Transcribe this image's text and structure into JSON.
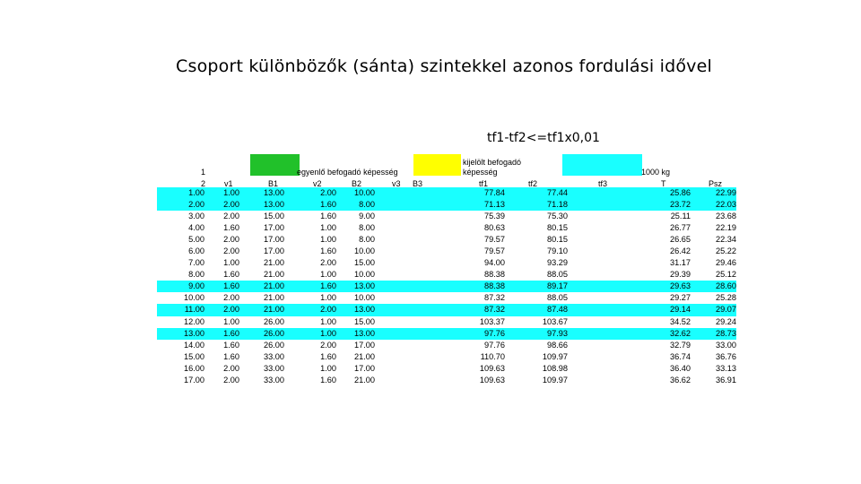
{
  "title": "Csoport különbözők (sánta) szintekkel  azonos fordulási  idővel",
  "subtitle": "tf1-tf2<=tf1x0,01",
  "colors": {
    "green": "#21c12a",
    "yellow": "#ffff00",
    "cyan": "#19ffff"
  },
  "header": {
    "row1_num": "1",
    "row2_num": "2",
    "egyenlo": "egyenlő befogadó képesség",
    "kijelolt_1": "kijelölt befogadó",
    "kijelolt_2": "képesség",
    "kg": "1000 kg",
    "columns": [
      "v1",
      "B1",
      "v2",
      "B2",
      "v3",
      "B3",
      "tf1",
      "tf2",
      "tf3",
      "T",
      "Psz"
    ]
  },
  "rows": [
    {
      "n": "1.00",
      "v1": "1.00",
      "b1": "13.00",
      "v2": "2.00",
      "b2": "10.00",
      "tf1": "77.84",
      "tf2": "77.44",
      "t": "25.86",
      "psz": "22.99",
      "hl": true
    },
    {
      "n": "2.00",
      "v1": "2.00",
      "b1": "13.00",
      "v2": "1.60",
      "b2": "8.00",
      "tf1": "71.13",
      "tf2": "71.18",
      "t": "23.72",
      "psz": "22.03",
      "hl": true
    },
    {
      "n": "3.00",
      "v1": "2.00",
      "b1": "15.00",
      "v2": "1.60",
      "b2": "9.00",
      "tf1": "75.39",
      "tf2": "75.30",
      "t": "25.11",
      "psz": "23.68",
      "hl": false
    },
    {
      "n": "4.00",
      "v1": "1.60",
      "b1": "17.00",
      "v2": "1.00",
      "b2": "8.00",
      "tf1": "80.63",
      "tf2": "80.15",
      "t": "26.77",
      "psz": "22.19",
      "hl": false
    },
    {
      "n": "5.00",
      "v1": "2.00",
      "b1": "17.00",
      "v2": "1.00",
      "b2": "8.00",
      "tf1": "79.57",
      "tf2": "80.15",
      "t": "26.65",
      "psz": "22.34",
      "hl": false
    },
    {
      "n": "6.00",
      "v1": "2.00",
      "b1": "17.00",
      "v2": "1.60",
      "b2": "10.00",
      "tf1": "79.57",
      "tf2": "79.10",
      "t": "26.42",
      "psz": "25.22",
      "hl": false
    },
    {
      "n": "7.00",
      "v1": "1.00",
      "b1": "21.00",
      "v2": "2.00",
      "b2": "15.00",
      "tf1": "94.00",
      "tf2": "93.29",
      "t": "31.17",
      "psz": "29.46",
      "hl": false
    },
    {
      "n": "8.00",
      "v1": "1.60",
      "b1": "21.00",
      "v2": "1.00",
      "b2": "10.00",
      "tf1": "88.38",
      "tf2": "88.05",
      "t": "29.39",
      "psz": "25.12",
      "hl": false
    },
    {
      "n": "9.00",
      "v1": "1.60",
      "b1": "21.00",
      "v2": "1.60",
      "b2": "13.00",
      "tf1": "88.38",
      "tf2": "89.17",
      "t": "29.63",
      "psz": "28.60",
      "hl": true
    },
    {
      "n": "10.00",
      "v1": "2.00",
      "b1": "21.00",
      "v2": "1.00",
      "b2": "10.00",
      "tf1": "87.32",
      "tf2": "88.05",
      "t": "29.27",
      "psz": "25.28",
      "hl": false
    },
    {
      "n": "11.00",
      "v1": "2.00",
      "b1": "21.00",
      "v2": "2.00",
      "b2": "13.00",
      "tf1": "87.32",
      "tf2": "87.48",
      "t": "29.14",
      "psz": "29.07",
      "hl": true
    },
    {
      "n": "12.00",
      "v1": "1.00",
      "b1": "26.00",
      "v2": "1.00",
      "b2": "15.00",
      "tf1": "103.37",
      "tf2": "103.67",
      "t": "34.52",
      "psz": "29.24",
      "hl": false
    },
    {
      "n": "13.00",
      "v1": "1.60",
      "b1": "26.00",
      "v2": "1.00",
      "b2": "13.00",
      "tf1": "97.76",
      "tf2": "97.93",
      "t": "32.62",
      "psz": "28.73",
      "hl": true
    },
    {
      "n": "14.00",
      "v1": "1.60",
      "b1": "26.00",
      "v2": "2.00",
      "b2": "17.00",
      "tf1": "97.76",
      "tf2": "98.66",
      "t": "32.79",
      "psz": "33.00",
      "hl": false
    },
    {
      "n": "15.00",
      "v1": "1.60",
      "b1": "33.00",
      "v2": "1.60",
      "b2": "21.00",
      "tf1": "110.70",
      "tf2": "109.97",
      "t": "36.74",
      "psz": "36.76",
      "hl": false
    },
    {
      "n": "16.00",
      "v1": "2.00",
      "b1": "33.00",
      "v2": "1.00",
      "b2": "17.00",
      "tf1": "109.63",
      "tf2": "108.98",
      "t": "36.40",
      "psz": "33.13",
      "hl": false
    },
    {
      "n": "17.00",
      "v1": "2.00",
      "b1": "33.00",
      "v2": "1.60",
      "b2": "21.00",
      "tf1": "109.63",
      "tf2": "109.97",
      "t": "36.62",
      "psz": "36.91",
      "hl": false
    }
  ]
}
